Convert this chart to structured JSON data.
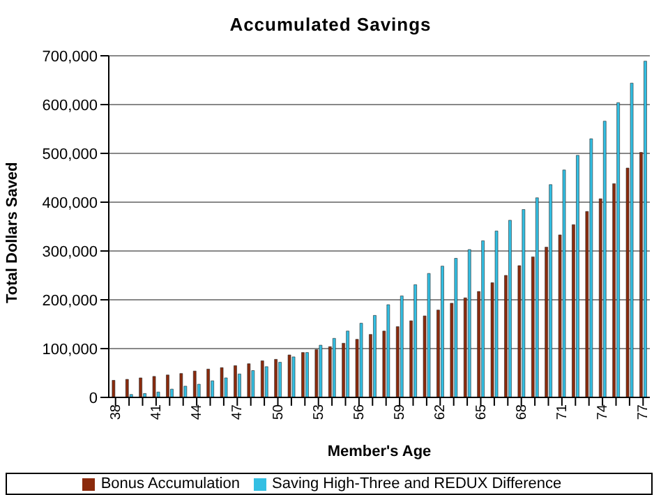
{
  "chart_data": {
    "type": "bar",
    "title": "Accumulated Savings",
    "xlabel": "Member's Age",
    "ylabel": "Total Dollars Saved",
    "categories": [
      "38",
      null,
      null,
      "41",
      null,
      null,
      "44",
      null,
      null,
      "47",
      null,
      null,
      "50",
      null,
      null,
      "53",
      null,
      null,
      "56",
      null,
      null,
      "59",
      null,
      null,
      "62",
      null,
      null,
      "65",
      null,
      null,
      "68",
      null,
      null,
      "71",
      null,
      null,
      "74",
      null,
      null,
      "77"
    ],
    "series": [
      {
        "name": "Bonus Accumulation",
        "color": "#8b2a0c",
        "values": [
          35000,
          37000,
          40000,
          43000,
          46000,
          49000,
          54000,
          58000,
          61000,
          65000,
          69000,
          75000,
          78000,
          87000,
          92000,
          98000,
          104000,
          111000,
          119000,
          129000,
          136000,
          145000,
          157000,
          167000,
          179000,
          193000,
          204000,
          217000,
          235000,
          250000,
          270000,
          288000,
          308000,
          333000,
          354000,
          381000,
          407000,
          438000,
          470000,
          502000
        ]
      },
      {
        "name": "Saving High-Three and REDUX Difference",
        "color": "#33bfe3",
        "values": [
          null,
          6000,
          8000,
          11000,
          17000,
          23000,
          27000,
          34000,
          40000,
          48000,
          55000,
          63000,
          72000,
          83000,
          92000,
          107000,
          121000,
          136000,
          152000,
          168000,
          190000,
          208000,
          231000,
          254000,
          269000,
          285000,
          303000,
          321000,
          341000,
          363000,
          385000,
          409000,
          436000,
          466000,
          496000,
          530000,
          566000,
          604000,
          644000,
          689000
        ]
      }
    ],
    "ylim": [
      0,
      700000
    ],
    "yticks": [
      0,
      {
        "value": 100000,
        "label": "100,000"
      },
      {
        "value": 200000,
        "label": "200,000"
      },
      {
        "value": 300000,
        "label": "300,000"
      },
      {
        "value": 400000,
        "label": "400,000"
      },
      {
        "value": 500000,
        "label": "500,000"
      },
      {
        "value": 600000,
        "label": "600,000"
      },
      {
        "value": 700000,
        "label": "700,000"
      }
    ],
    "grid": "y",
    "legend": "bottom"
  }
}
